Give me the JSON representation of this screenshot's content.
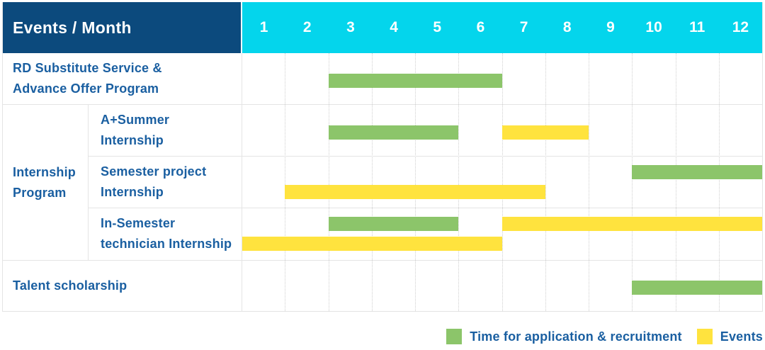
{
  "colors": {
    "header_bg": "#0C4A7D",
    "months_bg": "#04D5EC",
    "bar_green": "#8CC56A",
    "bar_yellow": "#FFE33E",
    "text_blue": "#1A5FA1",
    "grid_line": "#E4E4E4",
    "month_dotted_line": "#CFCFCF"
  },
  "header": {
    "title": "Events / Month",
    "months": [
      "1",
      "2",
      "3",
      "4",
      "5",
      "6",
      "7",
      "8",
      "9",
      "10",
      "11",
      "12"
    ]
  },
  "body": {
    "group_label": "Internship Program",
    "rows": [
      {
        "label": [
          "RD Substitute Service &",
          "Advance Offer Program"
        ],
        "in_group": false,
        "bar_lines": [
          [
            {
              "type": "application",
              "start": 3,
              "end": 7
            }
          ]
        ]
      },
      {
        "label": [
          "A+Summer",
          "Internship"
        ],
        "in_group": true,
        "bar_lines": [
          [
            {
              "type": "application",
              "start": 3,
              "end": 6
            },
            {
              "type": "event",
              "start": 7,
              "end": 9
            }
          ]
        ]
      },
      {
        "label": [
          "Semester project",
          "Internship"
        ],
        "in_group": true,
        "bar_lines": [
          [
            {
              "type": "application",
              "start": 10,
              "end": 13
            }
          ],
          [
            {
              "type": "event",
              "start": 2,
              "end": 8
            }
          ]
        ]
      },
      {
        "label": [
          "In-Semester",
          "technician Internship"
        ],
        "in_group": true,
        "bar_lines": [
          [
            {
              "type": "application",
              "start": 3,
              "end": 6
            },
            {
              "type": "event",
              "start": 7,
              "end": 13
            }
          ],
          [
            {
              "type": "event",
              "start": 1,
              "end": 7
            }
          ]
        ]
      },
      {
        "label": [
          "Talent scholarship"
        ],
        "in_group": false,
        "bar_lines": [
          [
            {
              "type": "application",
              "start": 10,
              "end": 13
            }
          ]
        ]
      }
    ]
  },
  "legend": {
    "items": [
      {
        "type": "application",
        "label": "Time for application & recruitment"
      },
      {
        "type": "event",
        "label": "Events"
      }
    ]
  },
  "chart_data": {
    "type": "gantt",
    "title": "Events / Month",
    "x_axis": {
      "label": "Month",
      "ticks": [
        1,
        2,
        3,
        4,
        5,
        6,
        7,
        8,
        9,
        10,
        11,
        12
      ]
    },
    "legend": {
      "application": "Time for application & recruitment",
      "event": "Events"
    },
    "tasks": [
      {
        "name": "RD Substitute Service & Advance Offer Program",
        "group": null,
        "application_months": [
          [
            3,
            6
          ]
        ],
        "event_months": []
      },
      {
        "name": "A+Summer Internship",
        "group": "Internship Program",
        "application_months": [
          [
            3,
            5
          ]
        ],
        "event_months": [
          [
            7,
            8
          ]
        ]
      },
      {
        "name": "Semester project Internship",
        "group": "Internship Program",
        "application_months": [
          [
            10,
            12
          ]
        ],
        "event_months": [
          [
            2,
            7
          ]
        ]
      },
      {
        "name": "In-Semester technician Internship",
        "group": "Internship Program",
        "application_months": [
          [
            3,
            5
          ]
        ],
        "event_months": [
          [
            7,
            12
          ],
          [
            1,
            6
          ]
        ]
      },
      {
        "name": "Talent scholarship",
        "group": null,
        "application_months": [
          [
            10,
            12
          ]
        ],
        "event_months": []
      }
    ]
  }
}
